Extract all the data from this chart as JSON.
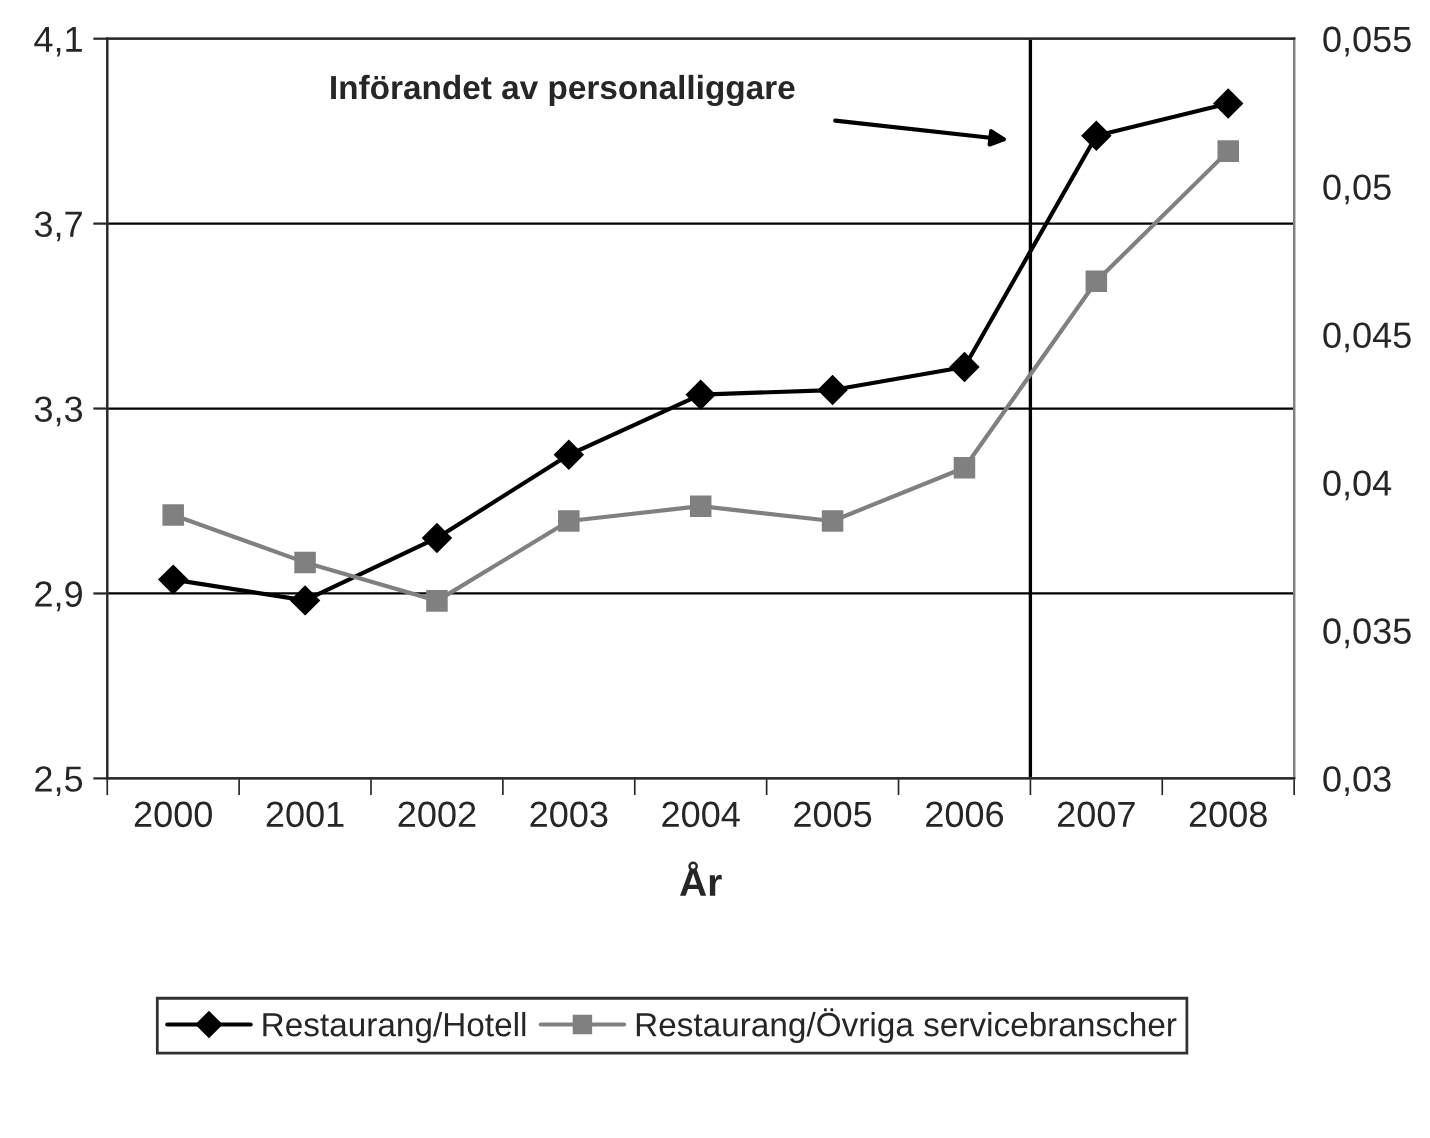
{
  "chart_data": {
    "type": "line",
    "xlabel": "År",
    "x": [
      2000,
      2001,
      2002,
      2003,
      2004,
      2005,
      2006,
      2007,
      2008
    ],
    "series": [
      {
        "name": "Restaurang/Hotell",
        "color": "#000000",
        "marker": "diamond",
        "values": [
          2.93,
          2.885,
          3.02,
          3.2,
          3.33,
          3.34,
          3.39,
          3.89,
          3.96
        ]
      },
      {
        "name": "Restaurang/Övriga servicebranscher",
        "color": "#808080",
        "marker": "square",
        "axis": "y2",
        "values": [
          0.0389,
          0.0373,
          0.036,
          0.0387,
          0.0392,
          0.0387,
          0.0405,
          0.0468,
          0.0512
        ]
      }
    ],
    "xlim": [
      1999.5,
      2008.5
    ],
    "xticks": [
      2000,
      2001,
      2002,
      2003,
      2004,
      2005,
      2006,
      2007,
      2008
    ],
    "ylim": [
      2.5,
      4.1
    ],
    "yticks": [
      {
        "value": 2.5,
        "label": "2,5"
      },
      {
        "value": 2.9,
        "label": "2,9"
      },
      {
        "value": 3.3,
        "label": "3,3"
      },
      {
        "value": 3.7,
        "label": "3,7"
      },
      {
        "value": 4.1,
        "label": "4,1"
      }
    ],
    "y2lim": [
      0.03,
      0.055
    ],
    "y2ticks": [
      {
        "value": 0.03,
        "label": "0,03"
      },
      {
        "value": 0.035,
        "label": "0,035"
      },
      {
        "value": 0.04,
        "label": "0,04"
      },
      {
        "value": 0.045,
        "label": "0,045"
      },
      {
        "value": 0.05,
        "label": "0,05"
      },
      {
        "value": 0.055,
        "label": "0,055"
      }
    ],
    "ref_lines": [
      {
        "axis": "x",
        "value": 2006.5,
        "color": "#000000"
      }
    ],
    "annotations": [
      "Införandet av personalliggare"
    ],
    "grid": "y",
    "legend": "bottom",
    "line_style": "solid"
  }
}
